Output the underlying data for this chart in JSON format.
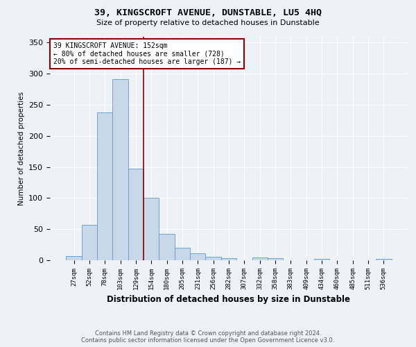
{
  "title": "39, KINGSCROFT AVENUE, DUNSTABLE, LU5 4HQ",
  "subtitle": "Size of property relative to detached houses in Dunstable",
  "xlabel": "Distribution of detached houses by size in Dunstable",
  "ylabel": "Number of detached properties",
  "bin_labels": [
    "27sqm",
    "52sqm",
    "78sqm",
    "103sqm",
    "129sqm",
    "154sqm",
    "180sqm",
    "205sqm",
    "231sqm",
    "256sqm",
    "282sqm",
    "307sqm",
    "332sqm",
    "358sqm",
    "383sqm",
    "409sqm",
    "434sqm",
    "460sqm",
    "485sqm",
    "511sqm",
    "536sqm"
  ],
  "bar_values": [
    7,
    57,
    238,
    291,
    147,
    100,
    42,
    20,
    11,
    6,
    3,
    0,
    4,
    3,
    0,
    0,
    2,
    0,
    0,
    0,
    2
  ],
  "bar_color": "#c8d8e8",
  "bar_edge_color": "#5b9bd5",
  "highlight_bin_index": 5,
  "highlight_color": "#8b0000",
  "annotation_text": "39 KINGSCROFT AVENUE: 152sqm\n← 80% of detached houses are smaller (728)\n20% of semi-detached houses are larger (187) →",
  "annotation_box_color": "white",
  "annotation_box_edge": "#8b0000",
  "footer_line1": "Contains HM Land Registry data © Crown copyright and database right 2024.",
  "footer_line2": "Contains public sector information licensed under the Open Government Licence v3.0.",
  "background_color": "#eef2f7",
  "ylim": [
    0,
    360
  ],
  "yticks": [
    0,
    50,
    100,
    150,
    200,
    250,
    300,
    350
  ]
}
